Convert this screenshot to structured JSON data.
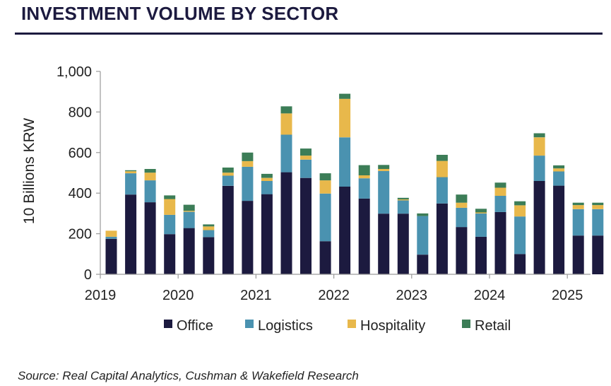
{
  "title": "INVESTMENT VOLUME BY SECTOR",
  "source": "Source: Real Capital Analytics, Cushman & Wakefield Research",
  "chart_data": {
    "type": "bar",
    "stacked": true,
    "ylabel": "10 Billions KRW",
    "ylim": [
      0,
      1000
    ],
    "yticks": [
      0,
      200,
      400,
      600,
      800,
      1000
    ],
    "ytick_labels": [
      "0",
      "200",
      "400",
      "600",
      "800",
      "1,000"
    ],
    "xtick_labels": [
      "2019",
      "2020",
      "2021",
      "2022",
      "2023",
      "2024",
      "2025"
    ],
    "categories": [
      "2019Q1",
      "2019Q2",
      "2019Q3",
      "2019Q4",
      "2020Q1",
      "2020Q2",
      "2020Q3",
      "2020Q4",
      "2021Q1",
      "2021Q2",
      "2021Q3",
      "2021Q4",
      "2022Q1",
      "2022Q2",
      "2022Q3",
      "2022Q4",
      "2023Q1",
      "2023Q2",
      "2023Q3",
      "2023Q4",
      "2024Q1",
      "2024Q2",
      "2024Q3",
      "2024Q4",
      "2025Q1",
      "2025Q2"
    ],
    "legend_position": "bottom",
    "grid": false,
    "series": [
      {
        "name": "Office",
        "color": "#1c1a3f",
        "values": [
          175,
          393,
          355,
          198,
          228,
          183,
          436,
          362,
          395,
          503,
          475,
          163,
          432,
          373,
          299,
          299,
          97,
          349,
          233,
          185,
          307,
          100,
          460,
          437,
          191,
          191
        ]
      },
      {
        "name": "Logistics",
        "color": "#4a92b0",
        "values": [
          10,
          105,
          108,
          95,
          80,
          35,
          50,
          168,
          65,
          185,
          90,
          235,
          243,
          100,
          210,
          65,
          190,
          130,
          95,
          115,
          80,
          185,
          125,
          70,
          130,
          130
        ]
      },
      {
        "name": "Hospitality",
        "color": "#e8b84b",
        "values": [
          30,
          10,
          38,
          78,
          5,
          18,
          15,
          28,
          15,
          105,
          20,
          65,
          190,
          15,
          10,
          5,
          0,
          80,
          25,
          5,
          40,
          55,
          90,
          15,
          20,
          20
        ]
      },
      {
        "name": "Retail",
        "color": "#3c7d57",
        "values": [
          0,
          5,
          18,
          18,
          30,
          10,
          25,
          42,
          20,
          35,
          35,
          35,
          25,
          50,
          20,
          8,
          13,
          30,
          40,
          18,
          25,
          20,
          20,
          15,
          12,
          12
        ]
      }
    ]
  }
}
